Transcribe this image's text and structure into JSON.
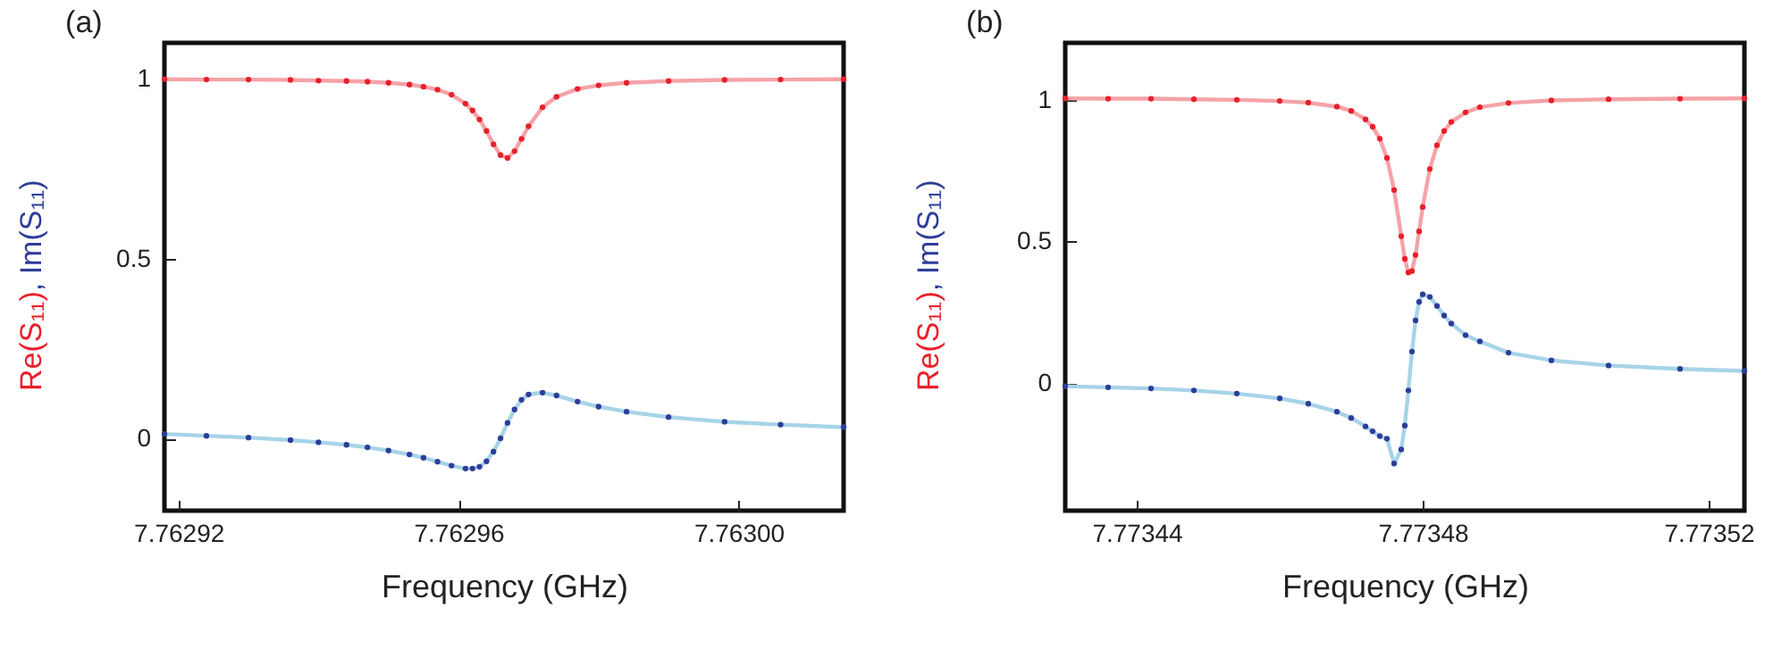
{
  "chart_data": [
    {
      "type": "line",
      "title": "(a)",
      "xlabel": "Frequency (GHz)",
      "ylabel": "Re(S₁₁), Im(S₁₁)",
      "grid": false,
      "x": [
        7.762918,
        7.762924,
        7.76293,
        7.762936,
        7.76294,
        7.762944,
        7.762947,
        7.76295,
        7.762953,
        7.762955,
        7.762957,
        7.762959,
        7.762961,
        7.762962,
        7.762963,
        7.762964,
        7.762965,
        7.762966,
        7.762967,
        7.762968,
        7.762969,
        7.76297,
        7.762972,
        7.762974,
        7.762977,
        7.76298,
        7.762984,
        7.76299,
        7.762998,
        7.763006,
        7.763015
      ],
      "xlim": [
        7.762918,
        7.763015
      ],
      "xticks": [
        7.76292,
        7.76296,
        {
          "value": 7.763,
          "label": "7.76300"
        }
      ],
      "ylim": [
        -0.2,
        1.1
      ],
      "yticks": [
        0,
        0.5,
        1
      ],
      "series": [
        {
          "type": "line",
          "color": "#f5a3a8",
          "values": [
            0.999,
            0.998,
            0.998,
            0.997,
            0.995,
            0.994,
            0.992,
            0.989,
            0.984,
            0.978,
            0.97,
            0.956,
            0.931,
            0.912,
            0.887,
            0.855,
            0.818,
            0.788,
            0.78,
            0.799,
            0.833,
            0.868,
            0.921,
            0.95,
            0.972,
            0.982,
            0.989,
            0.994,
            0.997,
            0.998,
            0.999
          ]
        },
        {
          "type": "scatter",
          "marker": "circle",
          "color": "#e8202a",
          "values": [
            0.999,
            0.998,
            0.998,
            0.997,
            0.995,
            0.994,
            0.992,
            0.989,
            0.984,
            0.978,
            0.97,
            0.956,
            0.931,
            0.912,
            0.887,
            0.855,
            0.818,
            0.788,
            0.78,
            0.799,
            0.833,
            0.868,
            0.921,
            0.95,
            0.972,
            0.982,
            0.989,
            0.994,
            0.997,
            0.998,
            0.999
          ]
        },
        {
          "type": "line",
          "color": "#a6d4e8",
          "values": [
            0.013,
            0.008,
            0.003,
            -0.004,
            -0.01,
            -0.017,
            -0.024,
            -0.033,
            -0.044,
            -0.053,
            -0.064,
            -0.075,
            -0.083,
            -0.083,
            -0.078,
            -0.063,
            -0.036,
            0.001,
            0.044,
            0.081,
            0.108,
            0.123,
            0.128,
            0.12,
            0.103,
            0.089,
            0.075,
            0.06,
            0.047,
            0.039,
            0.032
          ]
        },
        {
          "type": "scatter",
          "marker": "circle",
          "color": "#2e3d99",
          "values": [
            0.013,
            0.008,
            0.003,
            -0.004,
            -0.01,
            -0.017,
            -0.024,
            -0.033,
            -0.044,
            -0.053,
            -0.064,
            -0.075,
            -0.083,
            -0.083,
            -0.078,
            -0.063,
            -0.036,
            0.001,
            0.044,
            0.081,
            0.108,
            0.123,
            0.128,
            0.12,
            0.103,
            0.089,
            0.075,
            0.06,
            0.047,
            0.039,
            0.032
          ]
        }
      ]
    },
    {
      "type": "line",
      "title": "(b)",
      "xlabel": "Frequency (GHz)",
      "ylabel": "Re(S₁₁), Im(S₁₁)",
      "grid": false,
      "x": [
        7.77343,
        7.773436,
        7.773442,
        7.773448,
        7.773454,
        7.77346,
        7.773464,
        7.773468,
        7.77347,
        7.773472,
        7.773473,
        7.773474,
        7.773475,
        7.773476,
        7.773477,
        7.7734775,
        7.773478,
        7.7734785,
        7.773479,
        7.7734795,
        7.77348,
        7.773481,
        7.773482,
        7.773483,
        7.773484,
        7.773486,
        7.773488,
        7.773492,
        7.773498,
        7.773506,
        7.773516,
        7.773525
      ],
      "xlim": [
        7.77343,
        7.773525
      ],
      "xticks": [
        7.77344,
        7.77348,
        7.77352
      ],
      "ylim": [
        -0.45,
        1.2
      ],
      "yticks": [
        0,
        0.5,
        1
      ],
      "series": [
        {
          "type": "line",
          "color": "#f5a3a8",
          "values": [
            1.004,
            1.003,
            1.003,
            1.001,
            0.999,
            0.995,
            0.989,
            0.975,
            0.96,
            0.93,
            0.904,
            0.862,
            0.794,
            0.681,
            0.518,
            0.438,
            0.39,
            0.395,
            0.452,
            0.535,
            0.621,
            0.755,
            0.839,
            0.889,
            0.921,
            0.955,
            0.973,
            0.988,
            0.997,
            1.001,
            1.003,
            1.004
          ]
        },
        {
          "type": "scatter",
          "marker": "circle",
          "color": "#e8202a",
          "values": [
            1.004,
            1.003,
            1.003,
            1.001,
            0.999,
            0.995,
            0.989,
            0.975,
            0.96,
            0.93,
            0.904,
            0.862,
            0.794,
            0.681,
            0.518,
            0.438,
            0.39,
            0.395,
            0.452,
            0.535,
            0.621,
            0.755,
            0.839,
            0.889,
            0.921,
            0.955,
            0.973,
            0.988,
            0.997,
            1.001,
            1.003,
            1.004
          ]
        },
        {
          "type": "line",
          "color": "#a6d4e8",
          "values": [
            -0.011,
            -0.015,
            -0.019,
            -0.026,
            -0.037,
            -0.054,
            -0.073,
            -0.101,
            -0.123,
            -0.153,
            -0.17,
            -0.187,
            -0.196,
            -0.284,
            -0.234,
            -0.15,
            -0.026,
            0.111,
            0.221,
            0.286,
            0.313,
            0.304,
            0.272,
            0.238,
            0.21,
            0.169,
            0.147,
            0.107,
            0.08,
            0.062,
            0.05,
            0.043
          ]
        },
        {
          "type": "scatter",
          "marker": "circle",
          "color": "#2e3d99",
          "values": [
            -0.011,
            -0.015,
            -0.019,
            -0.026,
            -0.037,
            -0.054,
            -0.073,
            -0.101,
            -0.123,
            -0.153,
            -0.17,
            -0.187,
            -0.196,
            -0.284,
            -0.234,
            -0.15,
            -0.026,
            0.111,
            0.221,
            0.286,
            0.313,
            0.304,
            0.272,
            0.238,
            0.21,
            0.169,
            0.147,
            0.107,
            0.08,
            0.062,
            0.05,
            0.043
          ]
        }
      ]
    }
  ]
}
